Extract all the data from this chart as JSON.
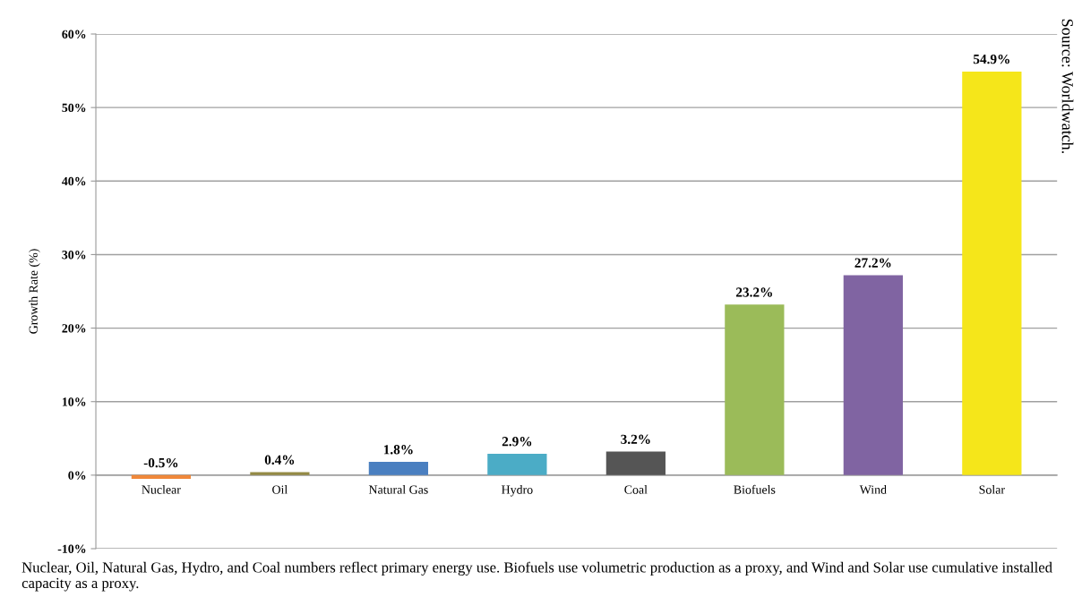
{
  "chart_data": {
    "type": "bar",
    "ylabel": "Growth Rate (%)",
    "categories": [
      "Nuclear",
      "Oil",
      "Natural Gas",
      "Hydro",
      "Coal",
      "Biofuels",
      "Wind",
      "Solar"
    ],
    "values": [
      -0.5,
      0.4,
      1.8,
      2.9,
      3.2,
      23.2,
      27.2,
      54.9
    ],
    "colors": [
      "#f0883a",
      "#948a45",
      "#4a7fc0",
      "#4bacc6",
      "#555555",
      "#9bbb59",
      "#8064a2",
      "#f5e61a"
    ],
    "value_labels": [
      "-0.5%",
      "0.4%",
      "1.8%",
      "2.9%",
      "3.2%",
      "23.2%",
      "27.2%",
      "54.9%"
    ],
    "ylim": [
      -10,
      60
    ],
    "yticks": [
      {
        "value": -10,
        "label": "-10%"
      },
      {
        "value": 0,
        "label": "0%"
      },
      {
        "value": 10,
        "label": "10%"
      },
      {
        "value": 20,
        "label": "20%"
      },
      {
        "value": 30,
        "label": "30%"
      },
      {
        "value": 40,
        "label": "40%"
      },
      {
        "value": 50,
        "label": "50%"
      },
      {
        "value": 60,
        "label": "60%"
      }
    ],
    "grid": "y",
    "annotations": [
      "Nuclear, Oil, Natural Gas, Hydro, and Coal numbers reflect primary energy use. Biofuels use volumetric production as a proxy, and Wind and Solar use cumulative installed capacity as a proxy.",
      "Source: Worldwatch."
    ]
  }
}
